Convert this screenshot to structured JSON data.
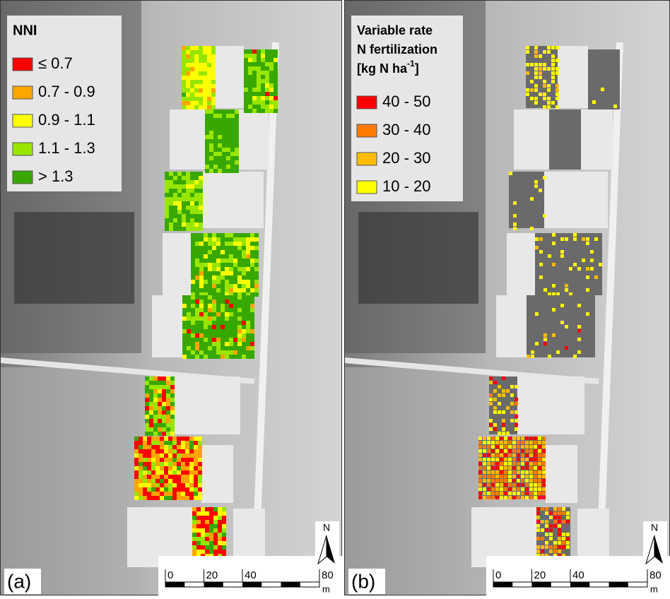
{
  "panels": [
    {
      "label": "(a)",
      "legend": {
        "title_lines": [
          "NNI"
        ],
        "items": [
          {
            "label": "≤ 0.7",
            "color": "#ff0000"
          },
          {
            "label": "0.7 - 0.9",
            "color": "#ffa500"
          },
          {
            "label": "0.9 - 1.1",
            "color": "#ffff00"
          },
          {
            "label": "1.1 - 1.3",
            "color": "#98e600"
          },
          {
            "label": "> 1.3",
            "color": "#38a800"
          }
        ]
      },
      "north": "N",
      "scale": {
        "ticks": [
          0,
          20,
          40,
          80
        ],
        "unit": "m"
      }
    },
    {
      "label": "(b)",
      "legend": {
        "title_lines": [
          "Variable rate",
          "N fertilization"
        ],
        "unit": {
          "base": "[kg N ha",
          "sup": "-1",
          "end": "]"
        },
        "items": [
          {
            "label": "40 - 50",
            "color": "#ff0000"
          },
          {
            "label": "30 - 40",
            "color": "#ff7b00"
          },
          {
            "label": "20 - 30",
            "color": "#ffbb00"
          },
          {
            "label": "10 - 20",
            "color": "#ffff00"
          }
        ]
      },
      "north": "N",
      "scale": {
        "ticks": [
          0,
          20,
          40,
          80
        ],
        "unit": "m"
      }
    }
  ]
}
